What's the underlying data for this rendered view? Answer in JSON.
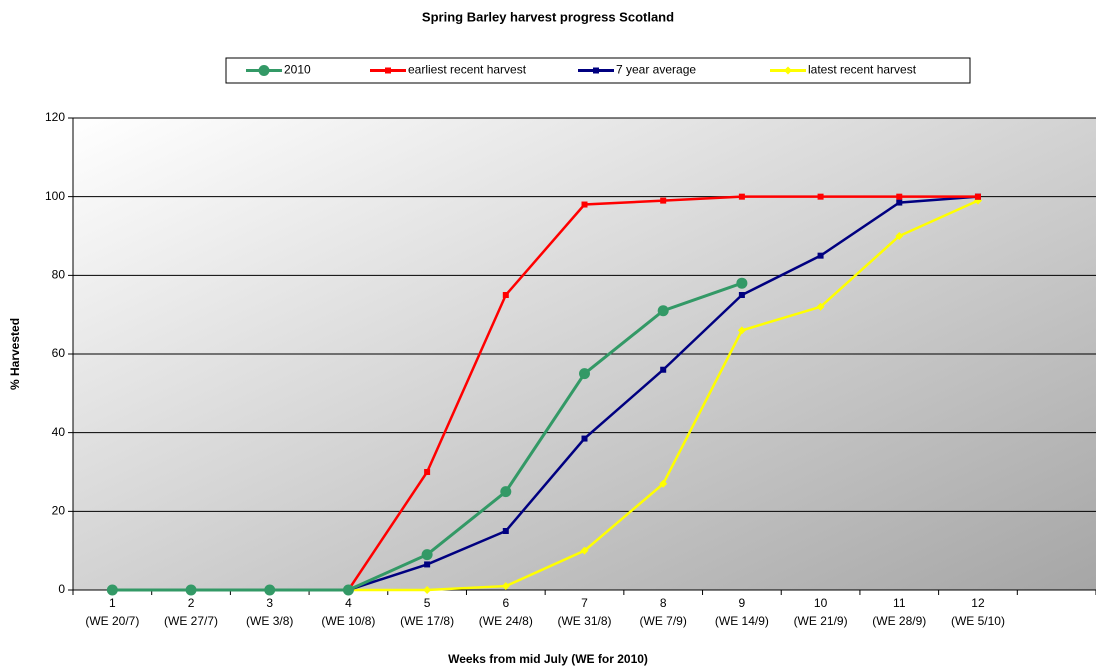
{
  "chart_data": {
    "type": "line",
    "title": "Spring Barley harvest progress Scotland",
    "x_label": "Weeks from mid July (WE for 2010)",
    "y_label": "% Harvested",
    "categories": [
      [
        "1",
        "(WE 20/7)"
      ],
      [
        "2",
        "(WE 27/7)"
      ],
      [
        "3",
        "(WE 3/8)"
      ],
      [
        "4",
        "(WE 10/8)"
      ],
      [
        "5",
        "(WE 17/8)"
      ],
      [
        "6",
        "(WE 24/8)"
      ],
      [
        "7",
        "(WE 31/8)"
      ],
      [
        "8",
        "(WE 7/9)"
      ],
      [
        "9",
        "(WE 14/9)"
      ],
      [
        "10",
        "(WE 21/9)"
      ],
      [
        "11",
        "(WE 28/9)"
      ],
      [
        "12",
        "(WE 5/10)"
      ]
    ],
    "series": [
      {
        "name": "2010",
        "color": "#339966",
        "values": [
          0,
          0,
          0,
          0,
          9,
          25,
          55,
          71,
          78,
          null,
          null,
          null
        ]
      },
      {
        "name": "earliest recent harvest",
        "color": "#ff0000",
        "values": [
          0,
          0,
          0,
          0,
          30,
          75,
          98,
          99,
          100,
          100,
          100,
          100
        ]
      },
      {
        "name": "7 year average",
        "color": "#000080",
        "values": [
          0,
          0,
          0,
          0,
          6.5,
          15,
          38.5,
          56,
          75,
          85,
          98.5,
          100
        ]
      },
      {
        "name": "latest recent harvest",
        "color": "#ffff00",
        "values": [
          0,
          0,
          0,
          0,
          0,
          1,
          10,
          27,
          66,
          72,
          90,
          99
        ]
      }
    ],
    "ylim": [
      0,
      120
    ],
    "yticks": [
      0,
      20,
      40,
      60,
      80,
      100,
      120
    ],
    "grid": true,
    "legend": "top"
  }
}
